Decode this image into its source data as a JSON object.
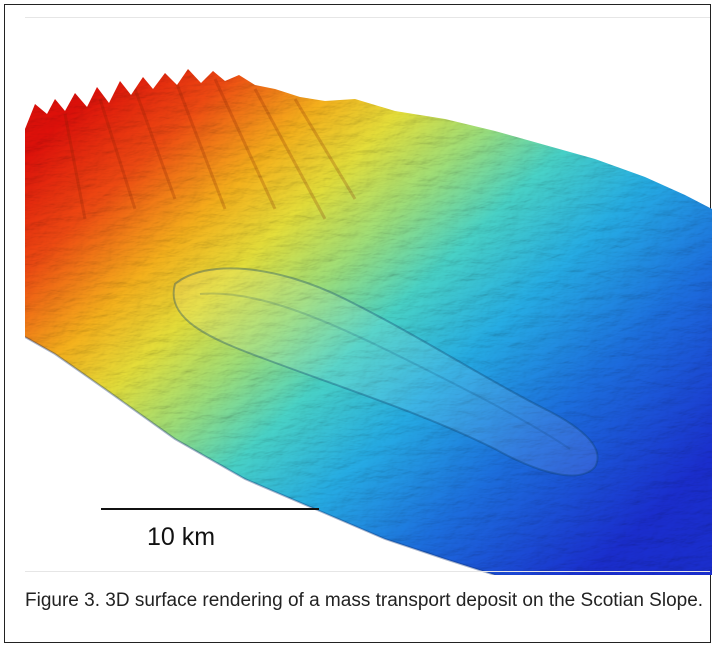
{
  "figure": {
    "scale_label": "10 km",
    "caption": "Figure 3.  3D surface rendering of a mass transport deposit on the Scotian Slope."
  }
}
